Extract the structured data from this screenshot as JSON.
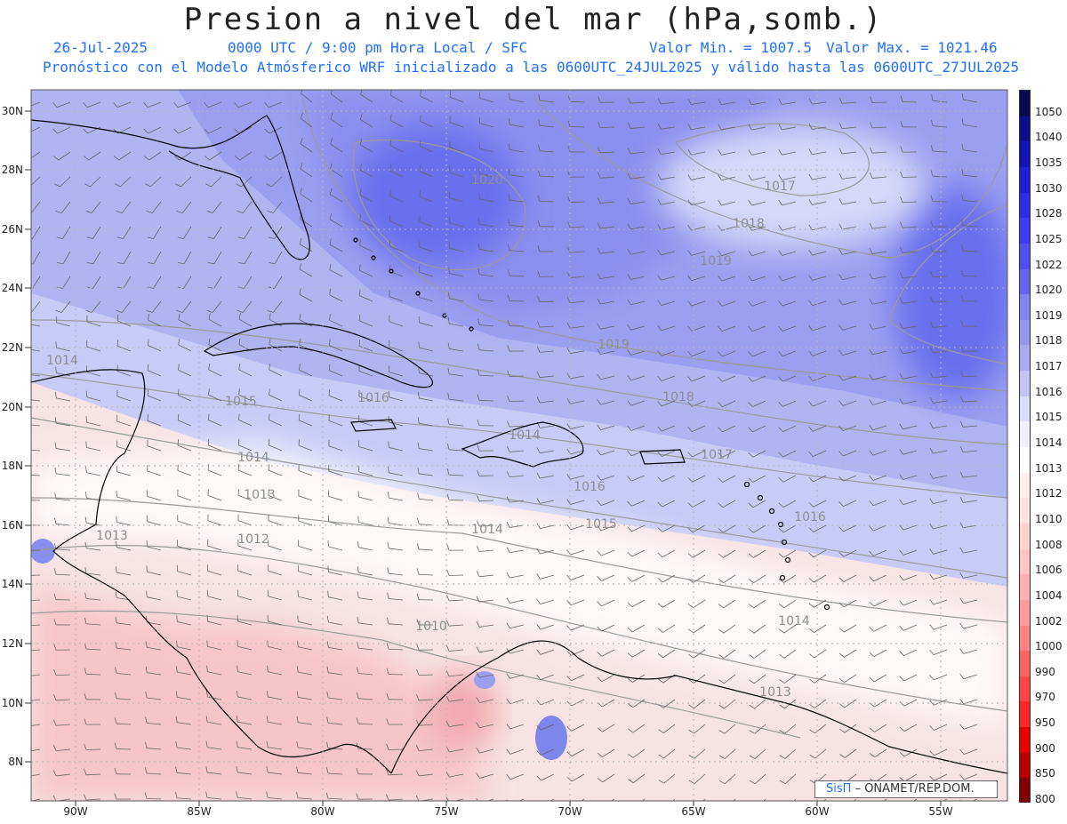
{
  "header": {
    "title": "Presion a nivel del mar (hPa,somb.)",
    "date": "26-Jul-2025",
    "time_info": "0000 UTC / 9:00 pm Hora Local / SFC",
    "min_value": "Valor Min. = 1007.5",
    "max_value": "Valor Max. = 1021.46",
    "forecast_note": "Pronóstico con el Modelo Atmósferico WRF inicializado a las 0600UTC_24JUL2025 y válido hasta las  0600UTC_27JUL2025"
  },
  "map": {
    "lat_labels": [
      "30N",
      "28N",
      "26N",
      "24N",
      "22N",
      "20N",
      "18N",
      "16N",
      "14N",
      "12N",
      "10N",
      "8N"
    ],
    "lon_labels": [
      "90W",
      "85W",
      "80W",
      "75W",
      "70W",
      "65W",
      "60W",
      "55W"
    ],
    "isobar_labels": [
      "1020",
      "1017",
      "1018",
      "1019",
      "1019",
      "1018",
      "1017",
      "1016",
      "1016",
      "1015",
      "1014",
      "1014",
      "1015",
      "1016",
      "1014",
      "1013",
      "1013",
      "1012",
      "1010",
      "1014",
      "1014",
      "1013"
    ]
  },
  "colorbar": {
    "levels": [
      "1050",
      "1040",
      "1035",
      "1030",
      "1028",
      "1025",
      "1022",
      "1020",
      "1019",
      "1018",
      "1017",
      "1016",
      "1015",
      "1014",
      "1013",
      "1012",
      "1010",
      "1008",
      "1006",
      "1004",
      "1002",
      "1000",
      "990",
      "970",
      "950",
      "900",
      "850",
      "800"
    ],
    "colors": [
      "#0a0a50",
      "#0c0c8c",
      "#1414b4",
      "#1e1ed2",
      "#2d2de6",
      "#3c3cf0",
      "#5050f0",
      "#6464f0",
      "#8282f0",
      "#9696f0",
      "#aaaaf2",
      "#c3c3f5",
      "#dcdcf8",
      "#f0f0fc",
      "#ffffff",
      "#fff0f0",
      "#ffe1e1",
      "#ffd2d2",
      "#ffc3c3",
      "#ffafaf",
      "#ff9b9b",
      "#ff8282",
      "#ff6464",
      "#ff4646",
      "#ff2828",
      "#e60000",
      "#b40000",
      "#820000"
    ]
  },
  "credit": {
    "brand": "SisΠ",
    "text": "– ONAMET/REP.DOM."
  }
}
